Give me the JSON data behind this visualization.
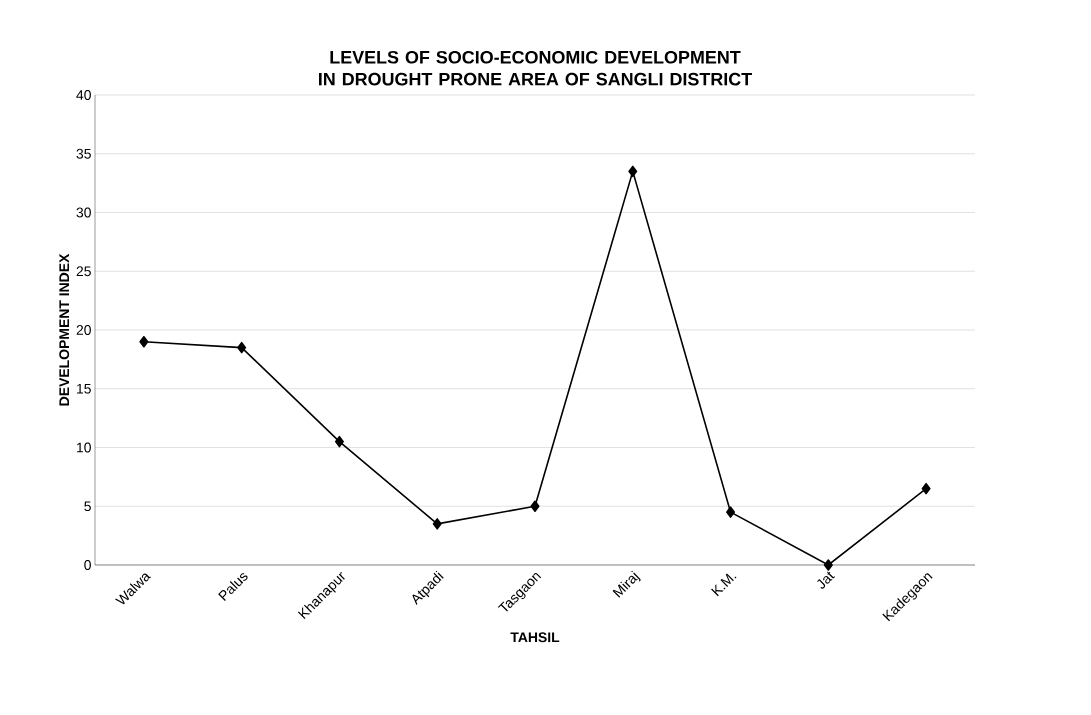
{
  "chart_data": {
    "type": "line",
    "title": "LEVELS OF SOCIO-ECONOMIC DEVELOPMENT IN DROUGHT PRONE AREA OF SANGLI DISTRICT",
    "xlabel": "TAHSIL",
    "ylabel": "DEVELOPMENT INDEX",
    "categories": [
      "Walwa",
      "Palus",
      "Khanapur",
      "Atpadi",
      "Tasgaon",
      "Miraj",
      "K.M.",
      "Jat",
      "Kadegaon"
    ],
    "series": [
      {
        "color": "#000000",
        "values": [
          19,
          18.5,
          10.5,
          3.5,
          5,
          33.5,
          4.5,
          0,
          6.5
        ]
      }
    ],
    "ylim": [
      0,
      40
    ],
    "yticks": [
      0,
      5,
      10,
      15,
      20,
      25,
      30,
      35,
      40
    ],
    "grid": "y",
    "marker": "diamond",
    "line_style": "solid"
  }
}
